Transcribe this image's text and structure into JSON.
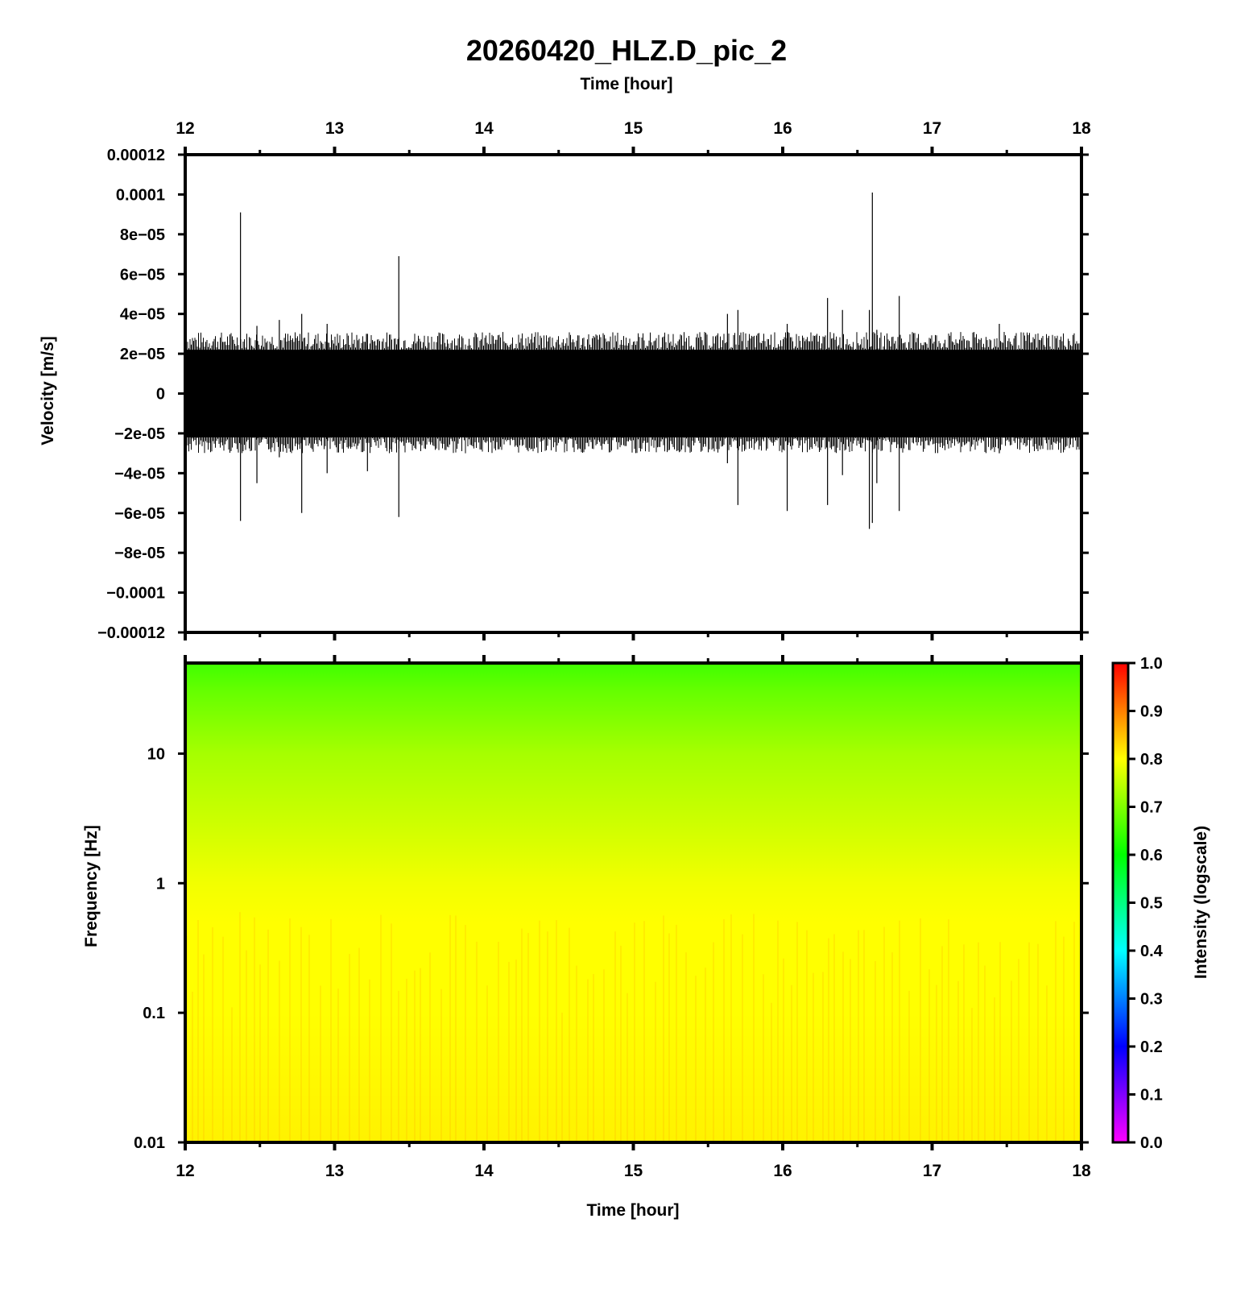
{
  "chart_data": [
    {
      "type": "line",
      "title": "20260420_HLZ.D_pic_2",
      "xlabel": "Time [hour]",
      "ylabel": "Velocity [m/s]",
      "xlim": [
        12,
        18
      ],
      "ylim": [
        -0.00012,
        0.00012
      ],
      "x_ticks": [
        "12",
        "13",
        "14",
        "15",
        "16",
        "17",
        "18"
      ],
      "y_ticks": [
        "0.00012",
        "0.0001",
        "8e-05",
        "6e-05",
        "4e-05",
        "2e-05",
        "0",
        "-2e-05",
        "-4e-05",
        "-6e-05",
        "-8e-05",
        "-0.0001",
        "-0.00012"
      ],
      "background_noise_band": [
        -2.2e-05,
        2.2e-05
      ],
      "series": [
        {
          "x_hours": [
            12.37,
            12.48,
            12.63,
            12.78,
            12.95,
            13.22,
            13.43,
            15.63,
            15.7,
            16.03,
            16.3,
            16.4,
            16.58,
            16.6,
            16.63,
            16.78,
            17.45
          ],
          "peak_up": [
            9.1e-05,
            3.4e-05,
            3.7e-05,
            4e-05,
            3.5e-05,
            3e-05,
            6.9e-05,
            4e-05,
            4.2e-05,
            3.5e-05,
            4.8e-05,
            4.2e-05,
            4.2e-05,
            0.000101,
            3.2e-05,
            4.9e-05,
            3.5e-05
          ],
          "peak_down": [
            -6.4e-05,
            -4.5e-05,
            -3.2e-05,
            -6e-05,
            -4e-05,
            -3.9e-05,
            -6.2e-05,
            -3.5e-05,
            -5.6e-05,
            -5.9e-05,
            -5.6e-05,
            -4.1e-05,
            -6.8e-05,
            -6.5e-05,
            -4.5e-05,
            -5.9e-05,
            -3e-05
          ]
        }
      ]
    },
    {
      "type": "heatmap",
      "xlabel": "Time [hour]",
      "ylabel": "Frequency [Hz]",
      "xlim": [
        12,
        18
      ],
      "ylim": [
        0.01,
        50
      ],
      "y_scale": "log",
      "x_ticks": [
        "12",
        "13",
        "14",
        "15",
        "16",
        "17",
        "18"
      ],
      "y_ticks": [
        {
          "value": 10,
          "label": "10"
        },
        {
          "value": 1,
          "label": "1"
        },
        {
          "value": 0.1,
          "label": "0.1"
        },
        {
          "value": 0.01,
          "label": "0.01"
        }
      ],
      "intensity_profile": {
        "freq_hz": [
          0.01,
          0.1,
          0.5,
          1,
          3,
          10,
          30,
          50
        ],
        "intensity": [
          0.81,
          0.8,
          0.8,
          0.79,
          0.76,
          0.73,
          0.68,
          0.65
        ]
      },
      "colorbar": {
        "label": "Intensity (logscale)",
        "ticks": [
          "0.0",
          "0.1",
          "0.2",
          "0.3",
          "0.4",
          "0.5",
          "0.6",
          "0.7",
          "0.8",
          "0.9",
          "1.0"
        ],
        "colors": [
          "#ff00ff",
          "#8000ff",
          "#0000ff",
          "#0080ff",
          "#00ffff",
          "#00ff80",
          "#00ff00",
          "#80ff00",
          "#ffff00",
          "#ff8000",
          "#ff0000"
        ]
      }
    }
  ]
}
